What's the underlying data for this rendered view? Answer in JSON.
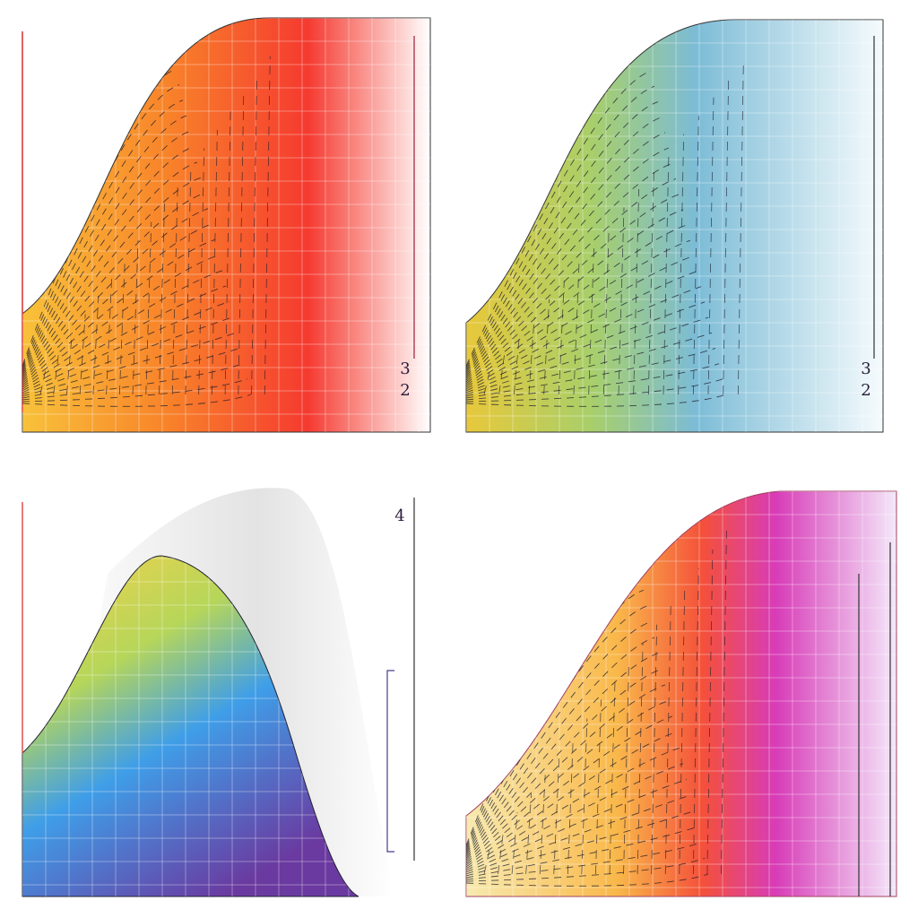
{
  "labels": {
    "top_left": [
      "3",
      "2"
    ],
    "top_right": [
      "3",
      "2"
    ],
    "bottom_left": [
      "4"
    ]
  }
}
